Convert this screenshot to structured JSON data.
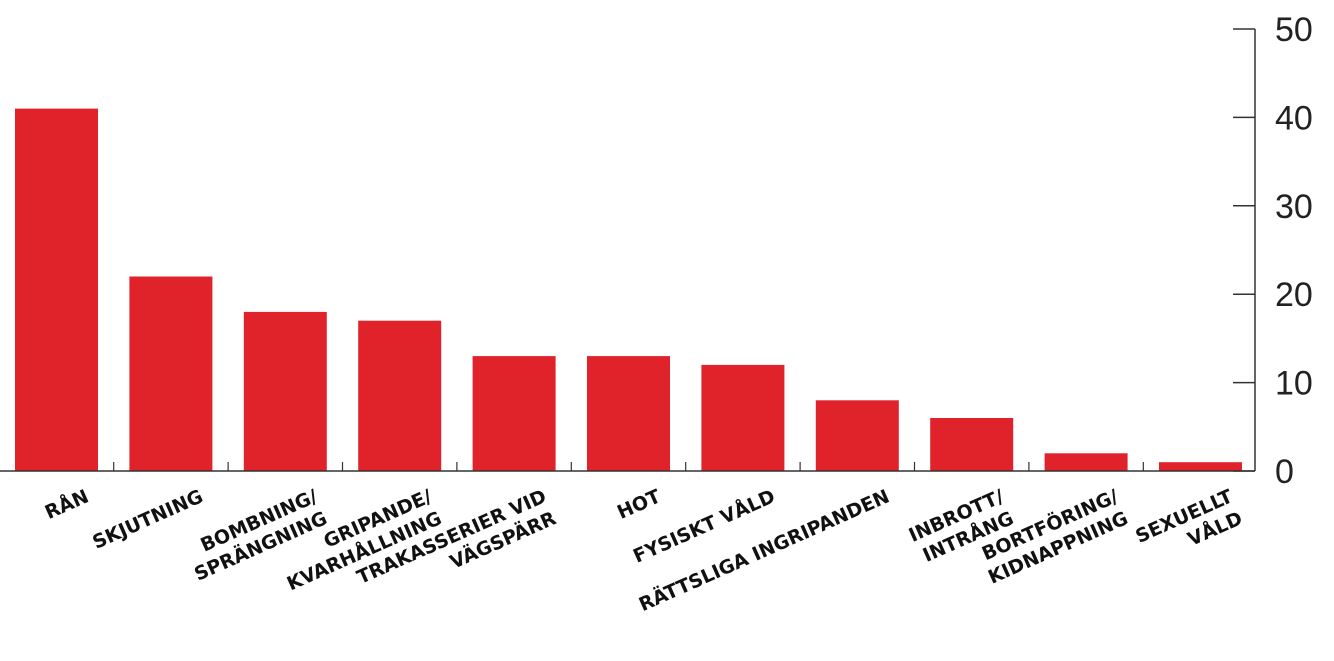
{
  "chart_data": {
    "type": "bar",
    "categories": [
      [
        "RÅN"
      ],
      [
        "SKJUTNING"
      ],
      [
        "BOMBNING/",
        "SPRÄNGNING"
      ],
      [
        "GRIPANDE/",
        "KVARHÅLLNING"
      ],
      [
        "TRAKASSERIER VID",
        "VÄGSPÄRR"
      ],
      [
        "HOT"
      ],
      [
        "FYSISKT VÅLD"
      ],
      [
        "RÄTTSLIGA INGRIPANDEN"
      ],
      [
        "INBROTT/",
        "INTRÅNG"
      ],
      [
        "BORTFÖRING/",
        "KIDNAPPNING"
      ],
      [
        "SEXUELLT",
        "VÅLD"
      ]
    ],
    "values": [
      41,
      22,
      18,
      17,
      13,
      13,
      12,
      8,
      6,
      2,
      1
    ],
    "ylim": [
      0,
      50
    ],
    "yticks": [
      "0",
      "10",
      "20",
      "30",
      "40",
      "50"
    ],
    "axis_position": "right",
    "grid": false,
    "bar_color": "#e0222b",
    "axis_color": "#333333"
  }
}
